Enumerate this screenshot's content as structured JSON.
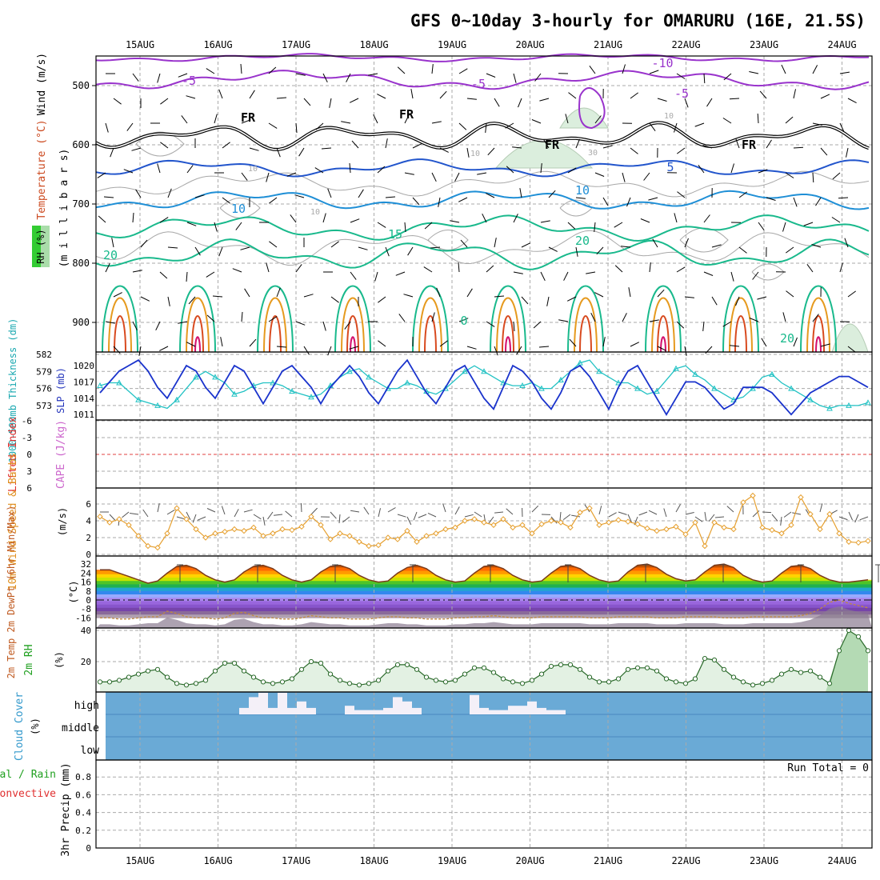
{
  "title": "GFS 0~10day 3-hourly for OMARURU (16E, 21.5S)",
  "dates": [
    "15AUG",
    "16AUG",
    "17AUG",
    "18AUG",
    "19AUG",
    "20AUG",
    "21AUG",
    "22AUG",
    "23AUG",
    "24AUG"
  ],
  "colors": {
    "frame": "#000000",
    "grid": "#aaaaaa",
    "purple": "#9933cc",
    "blue": "#2255cc",
    "lightblue": "#1f8fd6",
    "teal": "#19b98c",
    "orange": "#e69a1f",
    "red": "#d84a1f",
    "magenta": "#d4106e",
    "slp": "#1a33cc",
    "thick": "#22c2c4",
    "wind10": "#e6a030",
    "rh2m": "#208020",
    "cloud": "#6aaad6"
  },
  "panels": {
    "upper": {
      "ylabels": {
        "wind": "Wind (m/s)",
        "temp": "Temperature (°C)",
        "rh": "RH (%)",
        "mb": "(m i l l i b a r s)"
      },
      "pressure_ticks": [
        500,
        600,
        700,
        800,
        900
      ],
      "contour_labels": [
        {
          "text": "-10",
          "c": "purple"
        },
        {
          "text": "-5",
          "c": "purple"
        },
        {
          "text": "-5",
          "c": "purple"
        },
        {
          "text": "-5",
          "c": "purple"
        },
        {
          "text": "FR",
          "c": "frame"
        },
        {
          "text": "FR",
          "c": "frame"
        },
        {
          "text": "FR",
          "c": "frame"
        },
        {
          "text": "FR",
          "c": "frame"
        },
        {
          "text": "5",
          "c": "blue"
        },
        {
          "text": "10",
          "c": "lightblue"
        },
        {
          "text": "10",
          "c": "lightblue"
        },
        {
          "text": "15",
          "c": "teal"
        },
        {
          "text": "20",
          "c": "teal"
        },
        {
          "text": "20",
          "c": "teal"
        },
        {
          "text": "20",
          "c": "teal"
        },
        {
          "text": "0",
          "c": "teal"
        },
        {
          "text": "10",
          "c": "grid"
        },
        {
          "text": "10",
          "c": "grid"
        },
        {
          "text": "10",
          "c": "grid"
        },
        {
          "text": "10",
          "c": "grid"
        },
        {
          "text": "30",
          "c": "grid"
        }
      ]
    },
    "slp": {
      "ylabel_thick": "1000-500mb Thickness (dm)",
      "ylabel_slp": "SLP (mb)",
      "thick_ticks": [
        582,
        579,
        576,
        573
      ],
      "slp_ticks": [
        1020,
        1017,
        1014,
        1011
      ]
    },
    "cape": {
      "ylabel_li": "Lifted Index",
      "ylabel_cape": "CAPE (J/kg)",
      "ticks": [
        -6,
        -3,
        0,
        3,
        6
      ]
    },
    "wind10": {
      "ylabel": "10m Wind Speed & Barbs",
      "unit": "(m/s)",
      "ticks": [
        6,
        4,
        2,
        0
      ]
    },
    "temp2m": {
      "ylabel": "2m Temp 2m DewPt (6hr Min/Max)",
      "unit": "(°C)",
      "ticks": [
        32,
        24,
        16,
        8,
        0,
        -8,
        -16
      ]
    },
    "rh2m": {
      "ylabel": "2m RH",
      "unit": "(%)",
      "ticks": [
        40,
        20
      ]
    },
    "cloud": {
      "ylabel": "Cloud Cover",
      "unit": "(%)",
      "levels": [
        "high",
        "middle",
        "low"
      ]
    },
    "precip": {
      "ylabel_a": "Total / Rain",
      "ylabel_b": "Convective",
      "ylabel_c": "3hr Precip (mm)",
      "ticks": [
        0.8,
        0.6,
        0.4,
        0.2,
        0
      ],
      "run_total": "Run Total = 0"
    }
  },
  "chart_data": [
    {
      "type": "line",
      "name": "SLP / Thickness",
      "series": [
        {
          "name": "SLP (mb)",
          "values": [
            1015,
            1017,
            1019,
            1020,
            1021,
            1019,
            1016,
            1014,
            1017,
            1020,
            1019,
            1016,
            1014,
            1017,
            1020,
            1019,
            1016,
            1013,
            1016,
            1019,
            1020,
            1018,
            1016,
            1013,
            1016,
            1018,
            1020,
            1018,
            1015,
            1013,
            1016,
            1019,
            1021,
            1018,
            1015,
            1013,
            1016,
            1019,
            1020,
            1017,
            1014,
            1012,
            1016,
            1020,
            1019,
            1017,
            1014,
            1012,
            1015,
            1019,
            1020,
            1018,
            1015,
            1012,
            1016,
            1019,
            1020,
            1017,
            1014,
            1011,
            1014,
            1017,
            1017,
            1016,
            1014,
            1012,
            1013,
            1016,
            1016,
            1016,
            1015,
            1013,
            1011,
            1013,
            1015,
            1016,
            1017,
            1018,
            1018,
            1017,
            1016
          ]
        },
        {
          "name": "Thickness (dm)",
          "values": [
            576.5,
            577,
            577,
            575.5,
            574,
            573.5,
            573,
            572.5,
            574,
            576,
            578,
            579,
            578,
            577,
            575,
            575.5,
            576.5,
            577,
            577,
            576.5,
            575.5,
            575,
            574.5,
            575,
            576.5,
            578,
            579,
            579.5,
            578,
            577,
            576,
            576,
            577,
            576.5,
            575.5,
            575,
            576,
            577.5,
            579,
            580,
            579,
            578,
            577,
            576.5,
            576.5,
            577,
            576,
            576,
            577.5,
            579,
            580.5,
            581,
            579,
            578,
            577,
            577,
            576,
            575,
            575.5,
            577.5,
            579.5,
            580,
            578.5,
            577.5,
            576,
            575,
            574,
            574.5,
            576,
            578,
            578.5,
            577,
            576,
            575,
            574,
            573,
            572.5,
            573,
            573,
            573,
            573.5
          ]
        }
      ]
    },
    {
      "type": "line",
      "name": "10m Wind Speed",
      "series": [
        {
          "name": "10m Wind Speed (m/s)",
          "values": [
            4.5,
            3.8,
            4.2,
            3.5,
            2.2,
            1,
            0.8,
            2.5,
            5.5,
            4.2,
            3,
            2,
            2.5,
            2.7,
            3,
            2.8,
            3.2,
            2.2,
            2.5,
            3,
            2.9,
            3.3,
            4.5,
            3.5,
            1.8,
            2.5,
            2.2,
            1.5,
            1,
            1.1,
            2,
            1.8,
            2.8,
            1.5,
            2.2,
            2.5,
            3,
            3.2,
            4,
            4.2,
            3.8,
            3.5,
            4.2,
            3.2,
            3.5,
            2.5,
            3.6,
            4,
            3.8,
            3.2,
            5,
            5.5,
            3.5,
            3.8,
            4.1,
            3.9,
            3.6,
            3.1,
            2.8,
            3,
            3.3,
            2.4,
            3.8,
            1,
            3.8,
            3.2,
            3,
            6.2,
            7,
            3.2,
            2.9,
            2.5,
            3.5,
            6.8,
            4.8,
            3,
            4.8,
            2.5,
            1.5,
            1.4,
            1.6
          ]
        }
      ]
    },
    {
      "type": "area",
      "name": "2m Temp",
      "series": [
        {
          "name": "2m Temp (°C)",
          "values": [
            27,
            27,
            24,
            21,
            18,
            15,
            17,
            24,
            30,
            31,
            28,
            22,
            18,
            16,
            18,
            25,
            30,
            31,
            28,
            22,
            18,
            16,
            18,
            25,
            30,
            31,
            28,
            22,
            18,
            16,
            17,
            24,
            29,
            31,
            28,
            22,
            18,
            16,
            17,
            24,
            30,
            31,
            28,
            22,
            18,
            16,
            17,
            24,
            30,
            31,
            28,
            22,
            18,
            16,
            17,
            25,
            31,
            32,
            29,
            23,
            19,
            17,
            18,
            25,
            31,
            32,
            29,
            22,
            18,
            16,
            17,
            24,
            30,
            31,
            28,
            22,
            18,
            16,
            16,
            17,
            18
          ]
        },
        {
          "name": "2m DewPt (°C)",
          "values": [
            -16,
            -16,
            -17,
            -17,
            -16,
            -15,
            -15,
            -10,
            -12,
            -15,
            -16,
            -16,
            -17,
            -16,
            -12,
            -11,
            -14,
            -16,
            -16,
            -17,
            -17,
            -16,
            -14,
            -15,
            -16,
            -16,
            -17,
            -17,
            -17,
            -16,
            -15,
            -15,
            -16,
            -16,
            -17,
            -17,
            -17,
            -16,
            -16,
            -15,
            -15,
            -14,
            -15,
            -16,
            -16,
            -16,
            -15,
            -15,
            -15,
            -15,
            -15,
            -16,
            -16,
            -16,
            -15,
            -15,
            -15,
            -15,
            -16,
            -16,
            -16,
            -15,
            -15,
            -15,
            -15,
            -16,
            -16,
            -16,
            -15,
            -15,
            -15,
            -15,
            -15,
            -14,
            -12,
            -8,
            -2,
            0,
            -3,
            -5,
            -7
          ]
        }
      ]
    },
    {
      "type": "area",
      "name": "2m RH",
      "series": [
        {
          "name": "2m RH (%)",
          "values": [
            7,
            7,
            8,
            10,
            12,
            14,
            15,
            10,
            6,
            5,
            6,
            8,
            14,
            19,
            19,
            14,
            10,
            7,
            6,
            7,
            9,
            15,
            20,
            19,
            12,
            8,
            6,
            5,
            6,
            8,
            14,
            18,
            18,
            15,
            10,
            8,
            7,
            8,
            12,
            16,
            16,
            13,
            9,
            7,
            6,
            8,
            12,
            17,
            18,
            18,
            15,
            10,
            7,
            7,
            9,
            15,
            16,
            16,
            14,
            9,
            7,
            6,
            9,
            22,
            21,
            15,
            10,
            7,
            5,
            6,
            8,
            12,
            15,
            13,
            14,
            10,
            6,
            27,
            40,
            36,
            27
          ]
        }
      ]
    },
    {
      "type": "bar",
      "name": "Cloud Cover (high)",
      "series": [
        {
          "name": "high (%)",
          "values": [
            0,
            0,
            0,
            0,
            0,
            0,
            0,
            0,
            0,
            0,
            0,
            0,
            0,
            0,
            0,
            30,
            80,
            100,
            30,
            100,
            30,
            60,
            30,
            0,
            0,
            0,
            40,
            20,
            20,
            20,
            30,
            80,
            60,
            30,
            0,
            0,
            0,
            0,
            0,
            90,
            30,
            20,
            20,
            40,
            40,
            60,
            30,
            20,
            20,
            0,
            0,
            0,
            0,
            0,
            0,
            0,
            0,
            0,
            0,
            0,
            0,
            0,
            0,
            0,
            0,
            0,
            0,
            0,
            0,
            0,
            0,
            0,
            0,
            0,
            0,
            0,
            0,
            0,
            0,
            0,
            0
          ]
        }
      ]
    },
    {
      "type": "bar",
      "name": "3hr Precip",
      "series": [
        {
          "name": "Total / Rain (mm)",
          "values": [
            0,
            0,
            0,
            0,
            0,
            0,
            0,
            0,
            0,
            0,
            0,
            0,
            0,
            0,
            0,
            0,
            0,
            0,
            0,
            0,
            0,
            0,
            0,
            0,
            0,
            0,
            0,
            0,
            0,
            0,
            0,
            0,
            0,
            0,
            0,
            0,
            0,
            0,
            0,
            0,
            0,
            0,
            0,
            0,
            0,
            0,
            0,
            0,
            0,
            0,
            0,
            0,
            0,
            0,
            0,
            0,
            0,
            0,
            0,
            0,
            0,
            0,
            0,
            0,
            0,
            0,
            0,
            0,
            0,
            0,
            0,
            0,
            0,
            0,
            0,
            0,
            0,
            0,
            0,
            0,
            0
          ]
        }
      ],
      "ylim": [
        0,
        0.9
      ]
    }
  ]
}
